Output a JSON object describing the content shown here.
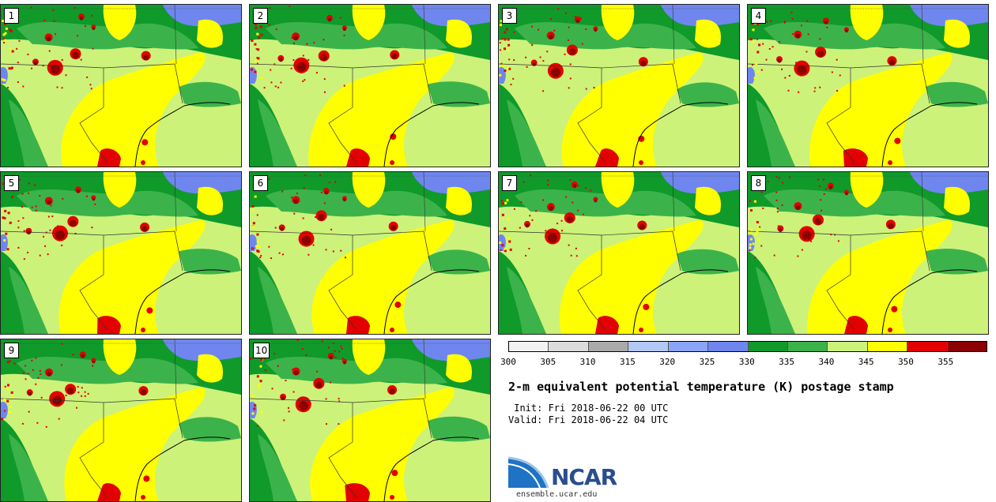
{
  "members": [
    "1",
    "2",
    "3",
    "4",
    "5",
    "6",
    "7",
    "8",
    "9",
    "10"
  ],
  "colorbar": {
    "ticks": [
      "300",
      "305",
      "310",
      "315",
      "320",
      "325",
      "330",
      "335",
      "340",
      "345",
      "350",
      "355"
    ],
    "colors": [
      "#f2f2f2",
      "#dcdcdc",
      "#aaaaaa",
      "#b3c8f5",
      "#8aa4f6",
      "#6f86ef",
      "#0f9a2a",
      "#3cb34a",
      "#ccf27a",
      "#ffff00",
      "#e30000",
      "#8b0000"
    ]
  },
  "title": "2-m equivalent potential temperature (K) postage stamp",
  "init": " Init: Fri 2018-06-22 00 UTC",
  "valid": "Valid: Fri 2018-06-22 04 UTC",
  "logo": {
    "text": "NCAR",
    "url": "ensemble.ucar.edu"
  }
}
